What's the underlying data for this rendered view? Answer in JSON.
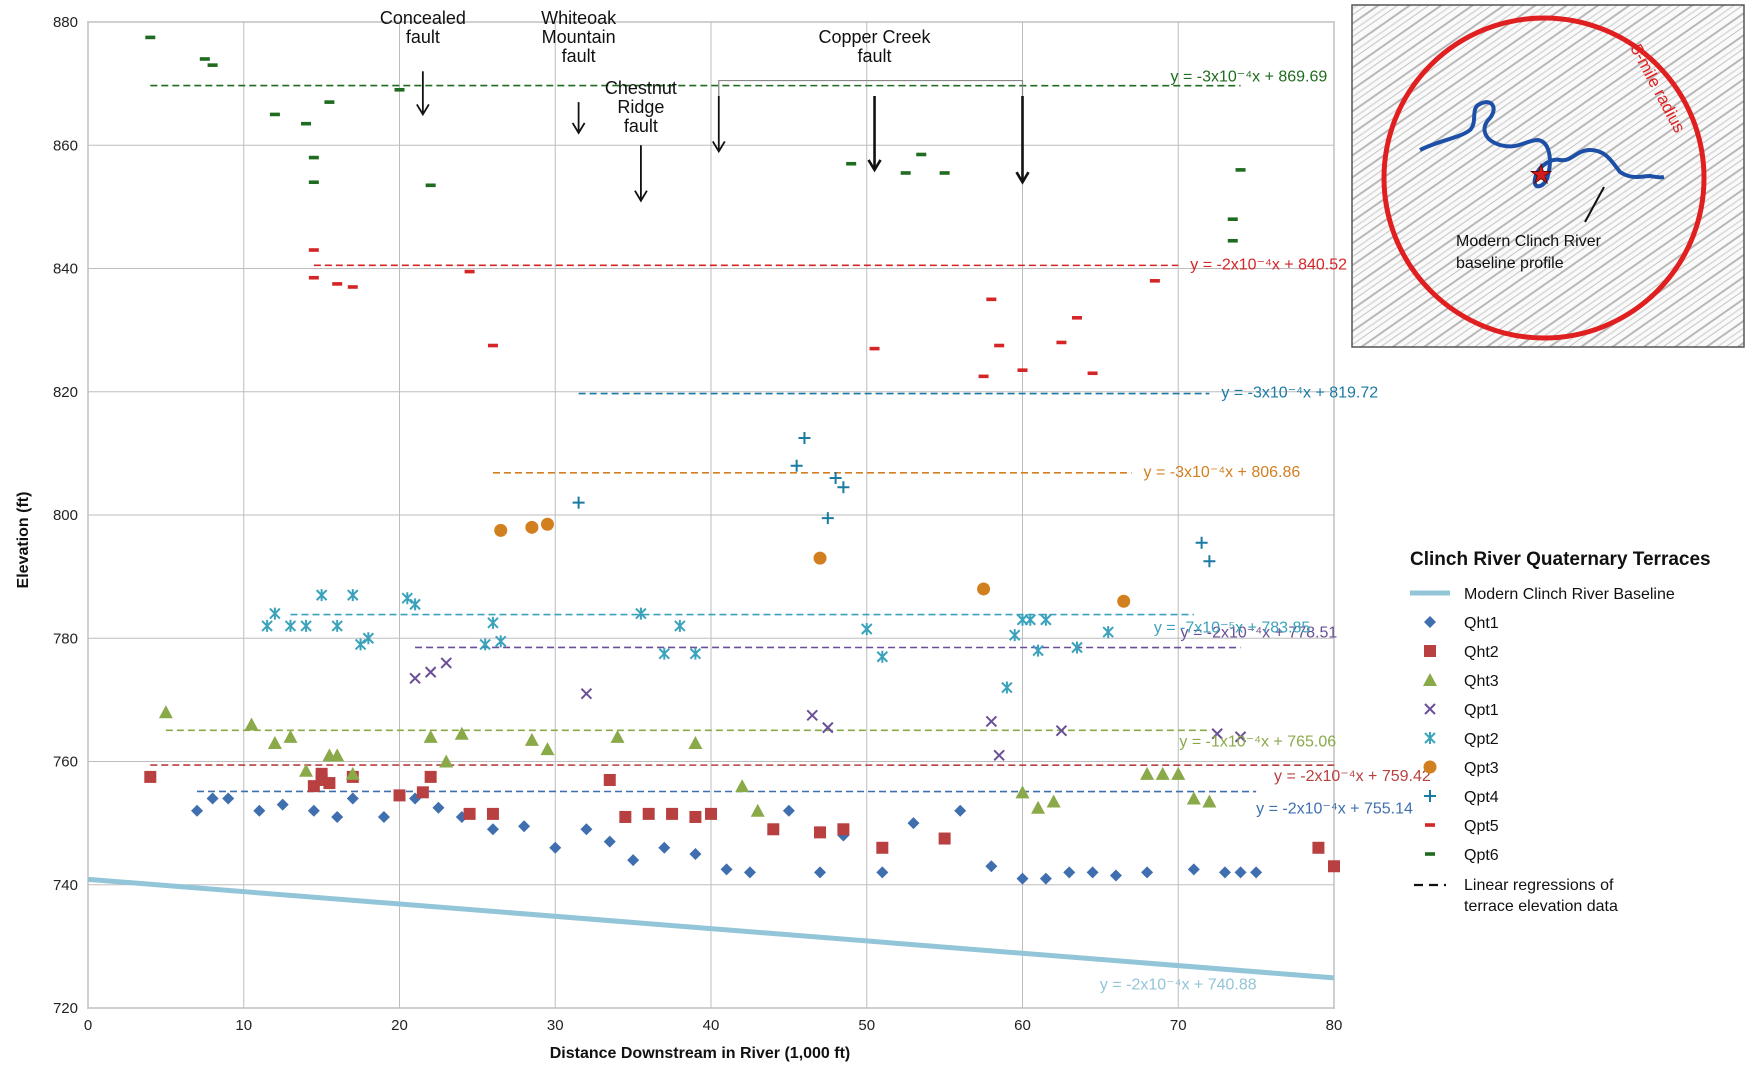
{
  "chart_data": {
    "type": "scatter",
    "title": "",
    "xlabel": "Distance Downstream in River (1,000 ft)",
    "ylabel": "Elevation (ft)",
    "xlim": [
      0,
      80
    ],
    "ylim": [
      720,
      880
    ],
    "x_ticks": [
      0,
      10,
      20,
      30,
      40,
      50,
      60,
      70,
      80
    ],
    "y_ticks": [
      720,
      740,
      760,
      780,
      800,
      820,
      840,
      860,
      880
    ],
    "grid": true,
    "legend_title": "Clinch River Quaternary Terraces",
    "legend_position": "right",
    "regression_legend_label": "Linear regressions of terrace elevation data",
    "baseline": {
      "name": "Modern Clinch River Baseline",
      "color": "#93c5d8",
      "x": [
        0,
        80
      ],
      "y": [
        740.88,
        724.88
      ],
      "equation": "y = -2x10⁻⁴x + 740.88"
    },
    "series": [
      {
        "name": "Qht1",
        "marker": "diamond",
        "color": "#3f6fae",
        "equation": "y = -2x10⁻⁴x + 755.14",
        "fit_x": [
          7,
          75
        ],
        "x": [
          7,
          8,
          9,
          11,
          12.5,
          14.5,
          16,
          17,
          19,
          21,
          22.5,
          24,
          26,
          28,
          30,
          32,
          33.5,
          35,
          37,
          39,
          41,
          42.5,
          45,
          47,
          48.5,
          51,
          53,
          56,
          58,
          60,
          61.5,
          63,
          64.5,
          66,
          68,
          71,
          73,
          74,
          75
        ],
        "y": [
          752,
          754,
          754,
          752,
          753,
          752,
          751,
          754,
          751,
          754,
          752.5,
          751,
          749,
          749.5,
          746,
          749,
          747,
          744,
          746,
          745,
          742.5,
          742,
          752,
          742,
          748,
          742,
          750,
          752,
          743,
          741,
          741,
          742,
          742,
          741.5,
          742,
          742.5,
          742,
          742,
          742
        ]
      },
      {
        "name": "Qht2",
        "marker": "square",
        "color": "#b94040",
        "equation": "y = -2x10⁻⁴x + 759.42",
        "fit_x": [
          4,
          80
        ],
        "x": [
          4,
          14.5,
          15,
          15,
          15.5,
          17,
          20,
          21.5,
          22,
          24.5,
          26,
          33.5,
          34.5,
          36,
          37.5,
          39,
          40,
          44,
          47,
          48.5,
          51,
          55,
          79,
          80
        ],
        "y": [
          757.5,
          756,
          758,
          757,
          756.5,
          757.5,
          754.5,
          755,
          757.5,
          751.5,
          751.5,
          757,
          751,
          751.5,
          751.5,
          751,
          751.5,
          749,
          748.5,
          749,
          746,
          747.5,
          746,
          743
        ]
      },
      {
        "name": "Qht3",
        "marker": "triangle",
        "color": "#8aaa4a",
        "equation": "y = -1x10⁻⁴x + 765.06",
        "fit_x": [
          5,
          72
        ],
        "x": [
          5,
          10.5,
          12,
          13,
          14,
          15.5,
          16,
          17,
          22,
          23,
          24,
          28.5,
          29.5,
          34,
          39,
          42,
          43,
          60,
          61,
          62,
          68,
          69,
          70,
          71,
          72
        ],
        "y": [
          768,
          766,
          763,
          764,
          758.5,
          761,
          761,
          758,
          764,
          760,
          764.5,
          763.5,
          762,
          764,
          763,
          756,
          752,
          755,
          752.5,
          753.5,
          758,
          758,
          758,
          754,
          753.5
        ]
      },
      {
        "name": "Qpt1",
        "marker": "x",
        "color": "#6a4f96",
        "equation": "y = -2x10⁻⁴x + 778.51",
        "fit_x": [
          21,
          74
        ],
        "x": [
          21,
          22,
          23,
          32,
          46.5,
          47.5,
          58,
          58.5,
          62.5,
          72.5,
          74
        ],
        "y": [
          773.5,
          774.5,
          776,
          771,
          767.5,
          765.5,
          766.5,
          761,
          765,
          764.5,
          764
        ]
      },
      {
        "name": "Qpt2",
        "marker": "asterisk",
        "color": "#3aa3bb",
        "equation": "y = -7x10⁻⁵x + 783.85",
        "fit_x": [
          13,
          71
        ],
        "x": [
          11.5,
          12,
          13,
          14,
          15,
          16,
          17,
          17.5,
          18,
          20.5,
          21,
          25.5,
          26,
          26.5,
          35.5,
          37,
          38,
          39,
          50,
          51,
          59,
          59.5,
          60,
          60.5,
          61,
          61.5,
          63.5,
          65.5
        ],
        "y": [
          782,
          784,
          782,
          782,
          787,
          782,
          787,
          779,
          780,
          786.5,
          785.5,
          779,
          782.5,
          779.5,
          784,
          777.5,
          782,
          777.5,
          781.5,
          777,
          772,
          780.5,
          783,
          783,
          778,
          783,
          778.5,
          781
        ]
      },
      {
        "name": "Qpt3",
        "marker": "circle",
        "color": "#d27f1f",
        "equation": "y = -3x10⁻⁴x + 806.86",
        "fit_x": [
          26,
          67
        ],
        "x": [
          26.5,
          28.5,
          29.5,
          47,
          57.5,
          66.5
        ],
        "y": [
          797.5,
          798,
          798.5,
          793,
          788,
          786
        ]
      },
      {
        "name": "Qpt4",
        "marker": "plus",
        "color": "#1a7aa3",
        "equation": "y = -3x10⁻⁴x + 819.72",
        "fit_x": [
          31.5,
          72
        ],
        "x": [
          31.5,
          45.5,
          46,
          48,
          48.5,
          47.5,
          71.5,
          72
        ],
        "y": [
          802,
          808,
          812.5,
          806,
          804.5,
          799.5,
          795.5,
          792.5
        ]
      },
      {
        "name": "Qpt5",
        "marker": "dash",
        "color": "#d42626",
        "equation": "y = -2x10⁻⁴x + 840.52",
        "fit_x": [
          14.5,
          70
        ],
        "x": [
          14.5,
          14.5,
          16,
          17,
          24.5,
          26,
          50.5,
          57.5,
          58,
          58.5,
          60,
          62.5,
          63.5,
          64.5,
          68.5
        ],
        "y": [
          843,
          838.5,
          837.5,
          837,
          839.5,
          827.5,
          827,
          822.5,
          835,
          827.5,
          823.5,
          828,
          832,
          823,
          838
        ]
      },
      {
        "name": "Qpt6",
        "marker": "dash",
        "color": "#1f6b1f",
        "equation": "y = -3x10⁻⁴x + 869.69",
        "fit_x": [
          4,
          74
        ],
        "x": [
          4,
          7.5,
          8,
          12,
          14,
          14.5,
          14.5,
          15.5,
          20,
          22,
          49,
          52.5,
          53.5,
          55,
          73.5,
          73.5,
          74
        ],
        "y": [
          877.5,
          874,
          873,
          865,
          863.5,
          858,
          854,
          867,
          869,
          853.5,
          857,
          855.5,
          858.5,
          855.5,
          848,
          844.5,
          856
        ]
      }
    ],
    "annotations": [
      {
        "label": "Concealed fault",
        "x": 21.5,
        "y_from": 872,
        "y_to": 865
      },
      {
        "label": "Whiteoak Mountain fault",
        "x": 31.5,
        "y_from": 867,
        "y_to": 862
      },
      {
        "label": "Chestnut Ridge fault",
        "x": 35.5,
        "y_from": 860,
        "y_to": 851
      },
      {
        "label": "Copper Creek fault",
        "bracket_x": [
          40.5,
          60
        ],
        "arrows": [
          {
            "x": 40.5,
            "y_from": 868,
            "y_to": 859
          },
          {
            "x": 50.5,
            "y_from": 868,
            "y_to": 856
          },
          {
            "x": 60,
            "y_from": 868,
            "y_to": 854
          }
        ]
      }
    ]
  },
  "inset": {
    "radius_label": "5-mile radius",
    "profile_label": "Modern Clinch River baseline profile",
    "circle_color": "#e02020",
    "river_color": "#1d4fa6",
    "marker": "red-star"
  },
  "labels": {
    "fault_concealed": [
      "Concealed",
      "fault"
    ],
    "fault_whiteoak": [
      "Whiteoak",
      "Mountain",
      "fault"
    ],
    "fault_chestnut": [
      "Chestnut",
      "Ridge",
      "fault"
    ],
    "fault_copper": [
      "Copper Creek",
      "fault"
    ],
    "inset_profile": [
      "Modern Clinch River",
      "baseline profile"
    ]
  }
}
